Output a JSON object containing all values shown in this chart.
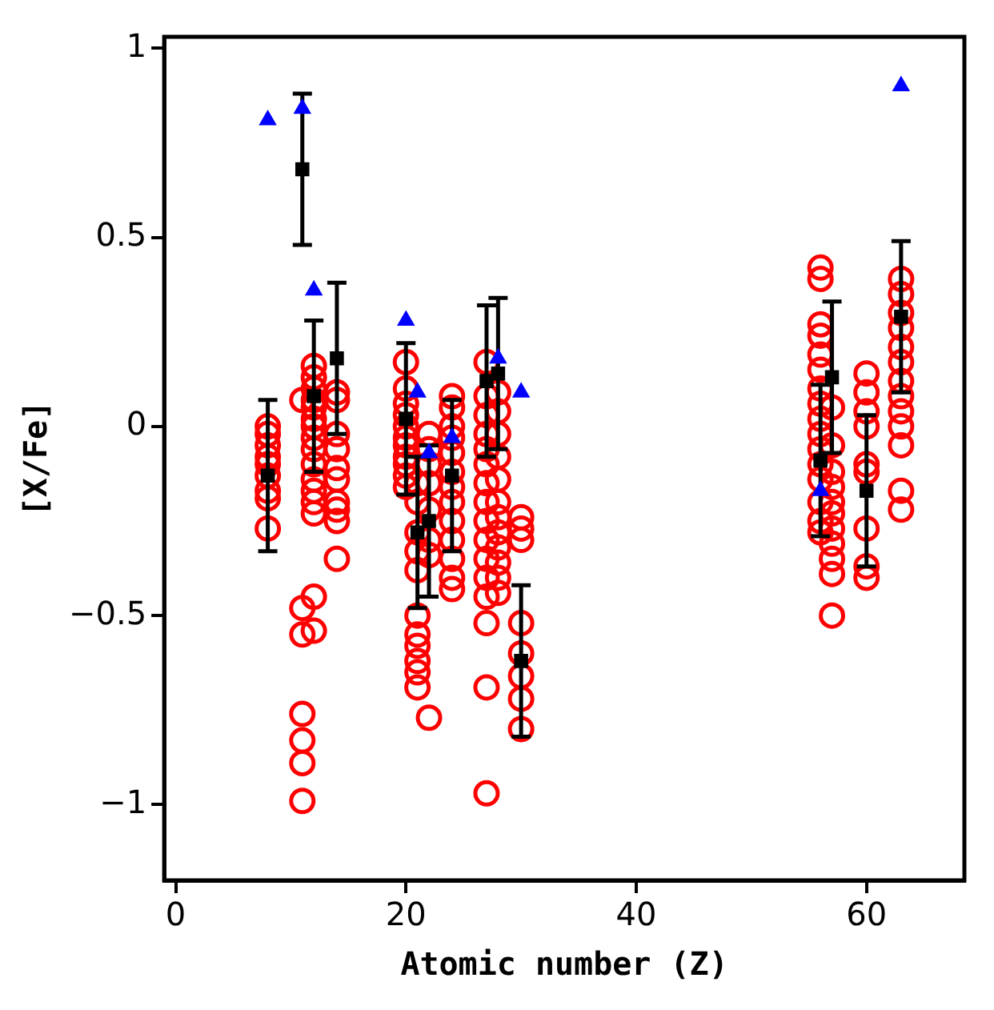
{
  "chart_data": {
    "type": "scatter",
    "xlabel": "Atomic number (Z)",
    "ylabel": "[X/Fe]",
    "xlim": [
      -1,
      68.5
    ],
    "ylim": [
      -1.2,
      1.03
    ],
    "xticks": [
      0,
      20,
      40,
      60
    ],
    "yticks": [
      {
        "value": -1,
        "label": "−1"
      },
      {
        "value": -0.5,
        "label": "−0.5"
      },
      0,
      0.5,
      1
    ],
    "grid": false,
    "legend": false,
    "series": [
      {
        "color": "#ff0000",
        "marker": "circle",
        "x": [
          8,
          8,
          8,
          8,
          8,
          8,
          8,
          8,
          8,
          11,
          11,
          11,
          11,
          11,
          11,
          11,
          12,
          12,
          12,
          12,
          12,
          12,
          12,
          12,
          12,
          12,
          12,
          12,
          12,
          12,
          12,
          12,
          14,
          14,
          14,
          14,
          14,
          14,
          14,
          14,
          14,
          14,
          20,
          20,
          20,
          20,
          20,
          20,
          20,
          20,
          20,
          20,
          20,
          21,
          21,
          21,
          21,
          21,
          21,
          21,
          21,
          21,
          21,
          21,
          22,
          22,
          22,
          22,
          22,
          22,
          22,
          22,
          24,
          24,
          24,
          24,
          24,
          24,
          24,
          24,
          24,
          24,
          24,
          24,
          24,
          27,
          27,
          27,
          27,
          27,
          27,
          27,
          27,
          27,
          27,
          27,
          27,
          27,
          27,
          27,
          27,
          28,
          28,
          28,
          28,
          28,
          28,
          28,
          28,
          28,
          28,
          28,
          28,
          30,
          30,
          30,
          30,
          30,
          30,
          30,
          30,
          56,
          56,
          56,
          56,
          56,
          56,
          56,
          56,
          56,
          56,
          56,
          56,
          56,
          56,
          56,
          56,
          57,
          57,
          57,
          57,
          57,
          57,
          57,
          57,
          57,
          57,
          57,
          60,
          60,
          60,
          60,
          60,
          60,
          60,
          60,
          60,
          63,
          63,
          63,
          63,
          63,
          63,
          63,
          63,
          63,
          63,
          63,
          63,
          63
        ],
        "values": [
          0.0,
          -0.02,
          -0.05,
          -0.08,
          -0.1,
          -0.13,
          -0.17,
          -0.19,
          -0.27,
          0.07,
          -0.48,
          -0.55,
          -0.76,
          -0.83,
          -0.89,
          -0.99,
          0.16,
          0.13,
          0.1,
          0.07,
          0.05,
          0.02,
          0.0,
          -0.03,
          -0.06,
          -0.1,
          -0.14,
          -0.17,
          -0.2,
          -0.23,
          -0.45,
          -0.54,
          0.09,
          0.07,
          -0.02,
          -0.06,
          -0.11,
          -0.14,
          -0.2,
          -0.22,
          -0.25,
          -0.35,
          0.17,
          0.1,
          0.06,
          0.03,
          0.0,
          -0.03,
          -0.05,
          -0.08,
          -0.1,
          -0.13,
          -0.16,
          -0.15,
          -0.2,
          -0.28,
          -0.33,
          -0.38,
          -0.5,
          -0.55,
          -0.58,
          -0.62,
          -0.65,
          -0.69,
          -0.02,
          -0.06,
          -0.1,
          -0.15,
          -0.22,
          -0.3,
          -0.34,
          -0.77,
          0.08,
          0.05,
          0.0,
          -0.03,
          -0.07,
          -0.12,
          -0.16,
          -0.2,
          -0.25,
          -0.3,
          -0.35,
          -0.4,
          -0.43,
          0.17,
          0.08,
          0.03,
          -0.02,
          -0.06,
          -0.1,
          -0.15,
          -0.2,
          -0.25,
          -0.3,
          -0.35,
          -0.4,
          -0.45,
          -0.52,
          -0.69,
          -0.97,
          0.09,
          0.04,
          -0.02,
          -0.08,
          -0.14,
          -0.2,
          -0.24,
          -0.28,
          -0.32,
          -0.36,
          -0.4,
          -0.44,
          -0.24,
          -0.27,
          -0.3,
          -0.52,
          -0.6,
          -0.66,
          -0.72,
          -0.8,
          0.42,
          0.39,
          0.27,
          0.24,
          0.19,
          0.15,
          0.1,
          0.06,
          0.02,
          -0.02,
          -0.06,
          -0.1,
          -0.14,
          -0.2,
          -0.25,
          -0.28,
          0.05,
          -0.05,
          -0.12,
          -0.16,
          -0.2,
          -0.23,
          -0.27,
          -0.31,
          -0.35,
          -0.39,
          -0.5,
          0.14,
          0.09,
          0.04,
          0.0,
          -0.1,
          -0.12,
          -0.27,
          -0.37,
          -0.4,
          0.39,
          0.35,
          0.3,
          0.26,
          0.21,
          0.17,
          0.12,
          0.08,
          0.04,
          0.0,
          -0.05,
          -0.17,
          -0.22
        ]
      },
      {
        "color": "#0000ff",
        "marker": "triangle",
        "x": [
          8,
          11,
          12,
          20,
          21,
          22,
          24,
          28,
          30,
          56,
          63
        ],
        "values": [
          0.81,
          0.84,
          0.36,
          0.28,
          0.09,
          -0.07,
          -0.03,
          0.18,
          0.09,
          -0.17,
          0.9
        ]
      },
      {
        "color": "#000000",
        "marker": "square",
        "x": [
          8,
          11,
          12,
          14,
          20,
          21,
          22,
          24,
          27,
          28,
          30,
          56,
          57,
          60,
          63
        ],
        "values": [
          -0.13,
          0.68,
          0.08,
          0.18,
          0.02,
          -0.28,
          -0.25,
          -0.13,
          0.12,
          0.14,
          -0.62,
          -0.09,
          0.13,
          -0.17,
          0.29
        ],
        "errors": [
          0.2,
          0.2,
          0.2,
          0.2,
          0.2,
          0.2,
          0.2,
          0.2,
          0.2,
          0.2,
          0.2,
          0.2,
          0.2,
          0.2,
          0.2
        ]
      }
    ]
  }
}
